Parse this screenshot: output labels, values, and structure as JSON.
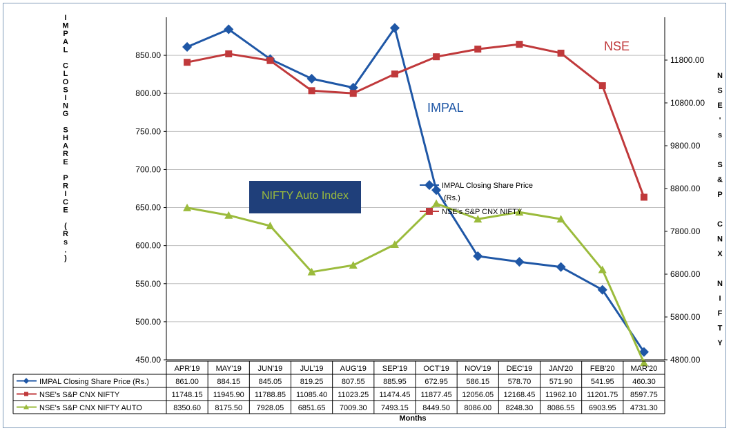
{
  "chart_data": {
    "type": "line",
    "categories": [
      "APR'19",
      "MAY'19",
      "JUN'19",
      "JUL'19",
      "AUG'19",
      "SEP'19",
      "OCT'19",
      "NOV'19",
      "DEC'19",
      "JAN'20",
      "FEB'20",
      "MAR'20"
    ],
    "series": [
      {
        "name": "IMPAL Closing Share Price (Rs.)",
        "axis": "left",
        "color": "#1f57a6",
        "marker": "diamond",
        "values": [
          861.0,
          884.15,
          845.05,
          819.25,
          807.55,
          885.95,
          672.95,
          586.15,
          578.7,
          571.9,
          541.95,
          460.3
        ],
        "table_values": [
          "861.00",
          "884.15",
          "845.05",
          "819.25",
          "807.55",
          "885.95",
          "672.95",
          "586.15",
          "578.70",
          "571.90",
          "541.95",
          "460.30"
        ]
      },
      {
        "name": "NSE's S&P CNX NIFTY",
        "axis": "right",
        "color": "#c0393b",
        "marker": "square",
        "values": [
          11748.15,
          11945.9,
          11788.85,
          11085.4,
          11023.25,
          11474.45,
          11877.45,
          12056.05,
          12168.45,
          11962.1,
          11201.75,
          8597.75
        ],
        "table_values": [
          "11748.15",
          "11945.90",
          "11788.85",
          "11085.40",
          "11023.25",
          "11474.45",
          "11877.45",
          "12056.05",
          "12168.45",
          "11962.10",
          "11201.75",
          "8597.75"
        ]
      },
      {
        "name": "NSE's S&P CNX NIFTY AUTO",
        "axis": "right",
        "color": "#9bbb3c",
        "marker": "triangle",
        "values": [
          8350.6,
          8175.5,
          7928.05,
          6851.65,
          7009.3,
          7493.15,
          8449.5,
          8086.0,
          8248.3,
          8086.55,
          6903.95,
          4731.3
        ],
        "table_values": [
          "8350.60",
          "8175.50",
          "7928.05",
          "6851.65",
          "7009.30",
          "7493.15",
          "8449.50",
          "8086.00",
          "8248.30",
          "8086.55",
          "6903.95",
          "4731.30"
        ]
      }
    ],
    "legend_labels": [
      "IMPAL Closing Share Price",
      "(Rs.)",
      "NSE's S&P CNX NIFTY"
    ],
    "y_left": {
      "label": "IMPAL CLOSING SHARE PRICE (Rs.)",
      "ylim": [
        450,
        900
      ],
      "ticks": [
        "450.00",
        "500.00",
        "550.00",
        "600.00",
        "650.00",
        "700.00",
        "750.00",
        "800.00",
        "850.00"
      ]
    },
    "y_right": {
      "label": "NSE's S&P CNX NIFTY",
      "ylim": [
        4800,
        12800
      ],
      "ticks": [
        "4800.00",
        "5800.00",
        "6800.00",
        "7800.00",
        "8800.00",
        "9800.00",
        "10800.00",
        "11800.00"
      ]
    },
    "xlabel": "Months",
    "annotations": {
      "impal": "IMPAL",
      "nse": "NSE",
      "nifty_auto": "NIFTY  Auto Index"
    },
    "grid": "horizontal",
    "legend_position": "center-right"
  }
}
